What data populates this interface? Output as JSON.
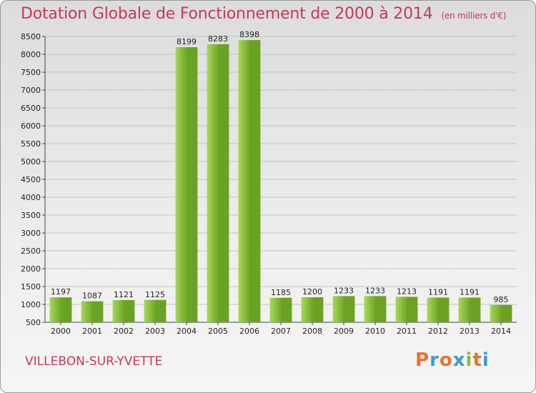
{
  "title": "Dotation Globale de Fonctionnement de 2000 à 2014",
  "unit_note": "(en milliers d'€)",
  "commune": "VILLEBON-SUR-YVETTE",
  "logo": {
    "text": [
      "P",
      "r",
      "o",
      "x",
      "i",
      "t",
      "i"
    ],
    "colors": [
      "#e8742a",
      "#3a9bd6",
      "#e8742a",
      "#3a9bd6",
      "#8bbd2d",
      "#e8742a",
      "#3a9bd6"
    ]
  },
  "colors": {
    "bar_light": "#a8d85a",
    "bar_dark": "#6aa323",
    "title": "#c8385a"
  },
  "chart_data": {
    "type": "bar",
    "title": "Dotation Globale de Fonctionnement de 2000 à 2014",
    "xlabel": "",
    "ylabel": "(en milliers d'€)",
    "categories": [
      "2000",
      "2001",
      "2002",
      "2003",
      "2004",
      "2005",
      "2006",
      "2007",
      "2008",
      "2009",
      "2010",
      "2011",
      "2012",
      "2013",
      "2014"
    ],
    "values": [
      1197,
      1087,
      1121,
      1125,
      8199,
      8283,
      8398,
      1185,
      1200,
      1233,
      1233,
      1213,
      1191,
      1191,
      985
    ],
    "ylim": [
      500,
      8500
    ],
    "yticks": [
      500,
      1000,
      1500,
      2000,
      2500,
      3000,
      3500,
      4000,
      4500,
      5000,
      5500,
      6000,
      6500,
      7000,
      7500,
      8000,
      8500
    ],
    "grid": true
  }
}
